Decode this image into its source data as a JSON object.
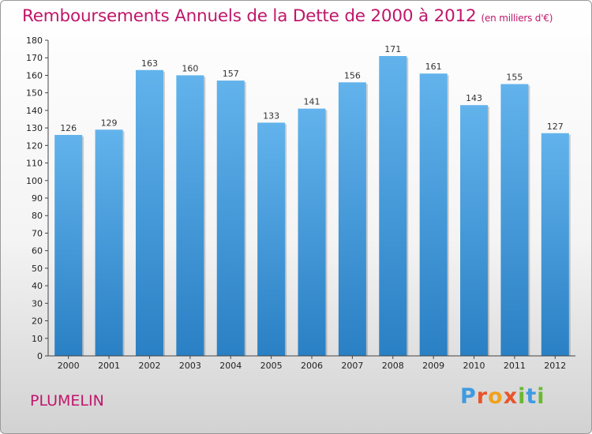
{
  "title": "Remboursements Annuels de la Dette de 2000 à 2012",
  "subtitle": "(en milliers d'€)",
  "commune": "PLUMELIN",
  "logo": {
    "letters": [
      {
        "ch": "P",
        "color": "#3f9be0"
      },
      {
        "ch": "r",
        "color": "#e8542a"
      },
      {
        "ch": "o",
        "color": "#f0a11e"
      },
      {
        "ch": "x",
        "color": "#e8542a"
      },
      {
        "ch": "i",
        "color": "#6ab82f"
      },
      {
        "ch": "t",
        "color": "#3f9be0"
      },
      {
        "ch": "i",
        "color": "#6ab82f"
      }
    ]
  },
  "colors": {
    "bar_top": "#62b3ec",
    "bar_bottom": "#2a80c4",
    "title": "#c0166a"
  },
  "chart_data": {
    "type": "bar",
    "categories": [
      "2000",
      "2001",
      "2002",
      "2003",
      "2004",
      "2005",
      "2006",
      "2007",
      "2008",
      "2009",
      "2010",
      "2011",
      "2012"
    ],
    "values": [
      126,
      129,
      163,
      160,
      157,
      133,
      141,
      156,
      171,
      161,
      143,
      155,
      127
    ],
    "ylim": [
      0,
      180
    ],
    "yticks": [
      0,
      10,
      20,
      30,
      40,
      50,
      60,
      70,
      80,
      90,
      100,
      110,
      120,
      130,
      140,
      150,
      160,
      170,
      180
    ],
    "grid": false,
    "legend": "none"
  }
}
